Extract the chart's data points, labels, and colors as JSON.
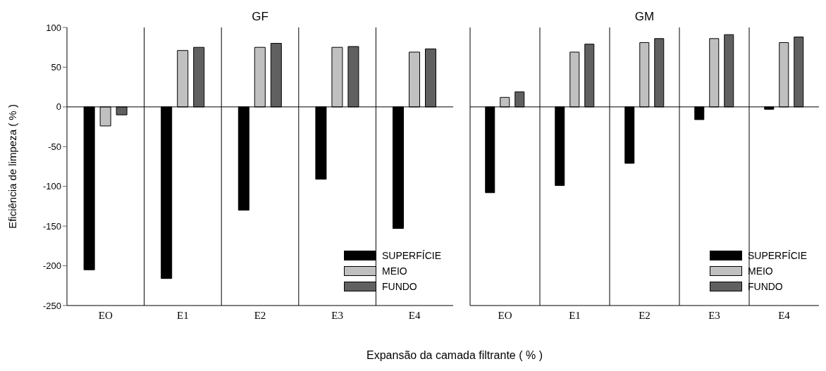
{
  "chart_data": [
    {
      "type": "bar",
      "title": "GF",
      "ylabel": "Eficiência de limpeza ( % )",
      "xlabel": "Expansão da camada filtrante ( % )",
      "categories": [
        "EO",
        "E1",
        "E2",
        "E3",
        "E4"
      ],
      "series": [
        {
          "name": "SUPERFÍCIE",
          "color": "#000000",
          "values": [
            -205,
            -216,
            -130,
            -91,
            -153
          ]
        },
        {
          "name": "MEIO",
          "color": "#c0c0c0",
          "values": [
            -24,
            71,
            75,
            75,
            69
          ]
        },
        {
          "name": "FUNDO",
          "color": "#606060",
          "values": [
            -10,
            75,
            80,
            76,
            73
          ]
        }
      ],
      "ylim": [
        -250,
        100
      ],
      "yticks": [
        -250,
        -200,
        -150,
        -100,
        -50,
        0,
        50,
        100
      ],
      "ref_lines": [
        {
          "axis": "y",
          "value": 0
        }
      ],
      "grid": "x",
      "legend": "bottom right"
    },
    {
      "type": "bar",
      "title": "GM",
      "categories": [
        "EO",
        "E1",
        "E2",
        "E3",
        "E4"
      ],
      "series": [
        {
          "name": "SUPERFÍCIE",
          "color": "#000000",
          "values": [
            -108,
            -99,
            -71,
            -16,
            -3
          ]
        },
        {
          "name": "MEIO",
          "color": "#c0c0c0",
          "values": [
            12,
            69,
            81,
            86,
            81
          ]
        },
        {
          "name": "FUNDO",
          "color": "#606060",
          "values": [
            19,
            79,
            86,
            91,
            88
          ]
        }
      ],
      "ylim": [
        -250,
        100
      ],
      "ref_lines": [
        {
          "axis": "y",
          "value": 0
        }
      ],
      "grid": "x",
      "legend": "bottom right",
      "tick_labels": "x"
    }
  ]
}
